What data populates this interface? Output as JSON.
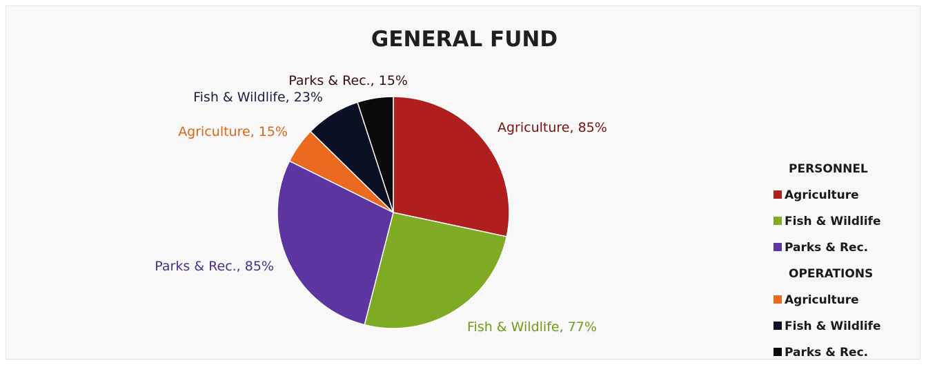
{
  "chart_data": {
    "type": "pie",
    "title": "GENERAL FUND",
    "slices": [
      {
        "label": "Agriculture, 85%",
        "group": "PERSONNEL",
        "category": "Agriculture",
        "percent": 85,
        "value": 85,
        "color": "#b01e1e",
        "label_color": "#7a1010"
      },
      {
        "label": "Fish & Wildlife, 77%",
        "group": "PERSONNEL",
        "category": "Fish & Wildlife",
        "percent": 77,
        "value": 77,
        "color": "#7faa24",
        "label_color": "#6f9a1c"
      },
      {
        "label": "Parks & Rec., 85%",
        "group": "PERSONNEL",
        "category": "Parks & Rec.",
        "percent": 85,
        "value": 85,
        "color": "#5c35a0",
        "label_color": "#4c2e88"
      },
      {
        "label": "Agriculture, 15%",
        "group": "OPERATIONS",
        "category": "Agriculture",
        "percent": 15,
        "value": 15,
        "color": "#ec6a1f",
        "label_color": "#e06418"
      },
      {
        "label": "Fish & Wildlife, 23%",
        "group": "OPERATIONS",
        "category": "Fish & Wildlife",
        "percent": 23,
        "value": 23,
        "color": "#0c1024",
        "label_color": "#152241"
      },
      {
        "label": "Parks & Rec., 15%",
        "group": "OPERATIONS",
        "category": "Parks & Rec.",
        "percent": 15,
        "value": 15,
        "color": "#0a0a0a",
        "label_color": "#3a0d0d"
      }
    ],
    "legend": {
      "placement": "right",
      "groups": [
        {
          "title": "PERSONNEL",
          "items": [
            {
              "label": "Agriculture",
              "color": "#b01e1e"
            },
            {
              "label": "Fish & Wildlife",
              "color": "#7faa24"
            },
            {
              "label": "Parks & Rec.",
              "color": "#5c35a0"
            }
          ]
        },
        {
          "title": "OPERATIONS",
          "items": [
            {
              "label": "Agriculture",
              "color": "#ec6a1f"
            },
            {
              "label": "Fish & Wildlife",
              "color": "#0c1024"
            },
            {
              "label": "Parks & Rec.",
              "color": "#0a0a0a"
            }
          ]
        }
      ]
    }
  }
}
